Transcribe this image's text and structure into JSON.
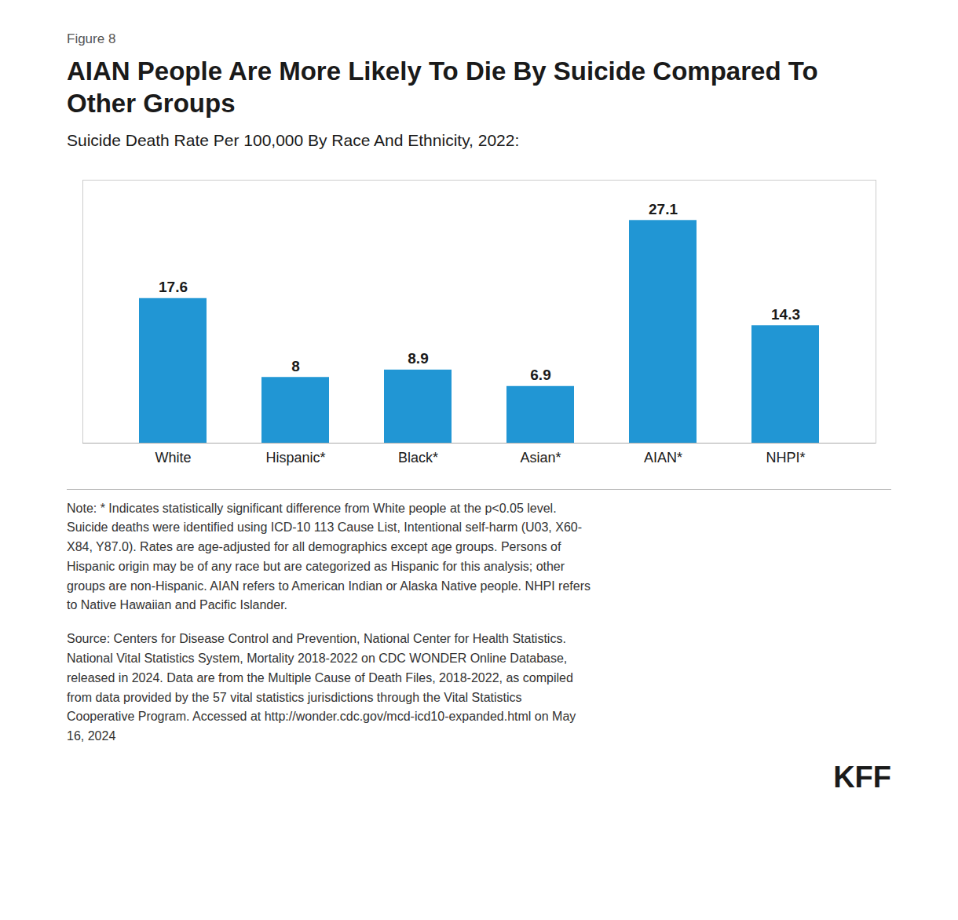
{
  "chart_data": {
    "type": "bar",
    "title": "AIAN People Are More Likely To Die By Suicide Compared To\nOther Groups",
    "subtitle": "Suicide Death Rate Per 100,000 By Race And Ethnicity, 2022:",
    "annotations": [
      "Figure 8",
      "Note: * Indicates statistically significant difference from White people at the p<0.05 level.\nSuicide deaths were identified using ICD-10 113 Cause List, Intentional self-harm (U03, X60-\nX84, Y87.0). Rates are age-adjusted for all demographics except age groups. Persons of\nHispanic origin may be of any race but are categorized as Hispanic for this analysis; other\ngroups are non-Hispanic. AIAN refers to American Indian or Alaska Native people. NHPI refers\nto Native Hawaiian and Pacific Islander.",
      "Source: Centers for Disease Control and Prevention, National Center for Health Statistics.\nNational Vital Statistics System, Mortality 2018-2022 on CDC WONDER Online Database,\nreleased in 2024. Data are from the Multiple Cause of Death Files, 2018-2022, as compiled\nfrom data provided by the 57 vital statistics jurisdictions through the Vital Statistics\nCooperative Program. Accessed at http://wonder.cdc.gov/mcd-icd10-expanded.html on May\n16, 2024",
      "KFF"
    ],
    "categories": [
      "White",
      "Hispanic*",
      "Black*",
      "Asian*",
      "AIAN*",
      "NHPI*"
    ],
    "values": [
      17.6,
      8,
      8.9,
      6.9,
      27.1,
      14.3
    ],
    "color": "#2196d4",
    "ylim": [
      0,
      32
    ],
    "data_labels": true,
    "tick_labels": "x",
    "grid": false
  }
}
